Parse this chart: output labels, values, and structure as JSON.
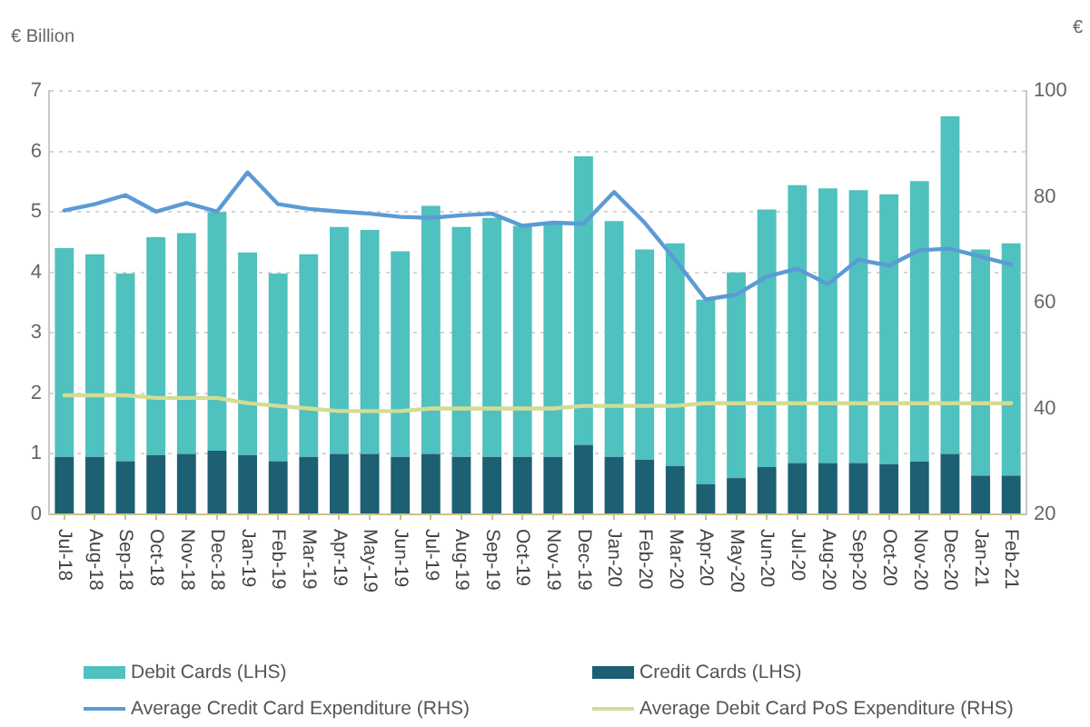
{
  "chart_data": {
    "type": "bar",
    "stacked": true,
    "ylabel": "€ Billion",
    "y2label": "€",
    "categories": [
      "Jul-18",
      "Aug-18",
      "Sep-18",
      "Oct-18",
      "Nov-18",
      "Dec-18",
      "Jan-19",
      "Feb-19",
      "Mar-19",
      "Apr-19",
      "May-19",
      "Jun-19",
      "Jul-19",
      "Aug-19",
      "Sep-19",
      "Oct-19",
      "Nov-19",
      "Dec-19",
      "Jan-20",
      "Feb-20",
      "Mar-20",
      "Apr-20",
      "May-20",
      "Jun-20",
      "Jul-20",
      "Aug-20",
      "Sep-20",
      "Oct-20",
      "Nov-20",
      "Dec-20",
      "Jan-21",
      "Feb-21"
    ],
    "series": [
      {
        "name": "Credit Cards (LHS)",
        "color": "#1d5f73",
        "values": [
          0.95,
          0.95,
          0.88,
          0.98,
          1.0,
          1.05,
          0.98,
          0.88,
          0.95,
          1.0,
          1.0,
          0.95,
          1.0,
          0.95,
          0.95,
          0.95,
          0.95,
          1.15,
          0.95,
          0.9,
          0.8,
          0.5,
          0.6,
          0.78,
          0.85,
          0.85,
          0.85,
          0.83,
          0.87,
          1.0,
          0.64,
          0.64
        ]
      },
      {
        "name": "Debit Cards (LHS)",
        "color": "#4fc1bf",
        "values": [
          3.45,
          3.35,
          3.1,
          3.6,
          3.65,
          3.95,
          3.35,
          3.1,
          3.35,
          3.75,
          3.7,
          3.4,
          4.1,
          3.8,
          3.95,
          3.82,
          3.87,
          4.77,
          3.9,
          3.48,
          3.68,
          3.05,
          3.4,
          4.26,
          4.59,
          4.54,
          4.51,
          4.46,
          4.64,
          5.58,
          3.74,
          3.84
        ]
      },
      {
        "name": "Average Credit Card Expenditure (RHS)",
        "type": "line",
        "axis": "y2",
        "color": "#5b9bd5",
        "values": [
          77.4,
          78.6,
          80.3,
          77.2,
          78.8,
          77.2,
          84.6,
          78.6,
          77.7,
          77.2,
          76.8,
          76.2,
          76,
          76.5,
          76.8,
          74.5,
          75.1,
          74.9,
          80.9,
          75.1,
          68.1,
          60.6,
          61.5,
          64.9,
          66.4,
          63.5,
          68.1,
          67,
          69.9,
          70.2,
          68.7,
          67.2
        ]
      },
      {
        "name": "Average Debit Card PoS Expenditure (RHS)",
        "type": "line",
        "axis": "y2",
        "color": "#d3dc94",
        "values": [
          42.5,
          42.5,
          42.5,
          42,
          42,
          42,
          41,
          40.5,
          40,
          39.5,
          39.5,
          39.5,
          40,
          40,
          40,
          40,
          40,
          40.5,
          40.5,
          40.5,
          40.5,
          41,
          41,
          41,
          41,
          41,
          41,
          41,
          41,
          41,
          41,
          41
        ]
      }
    ],
    "ylim": [
      0,
      7
    ],
    "yticks": [
      0,
      1,
      2,
      3,
      4,
      5,
      6,
      7
    ],
    "y2lim": [
      20,
      100
    ],
    "y2ticks": [
      20,
      40,
      60,
      80,
      100
    ],
    "grid": "y",
    "legend": "bottom",
    "marker": "none",
    "line_style": "solid"
  }
}
